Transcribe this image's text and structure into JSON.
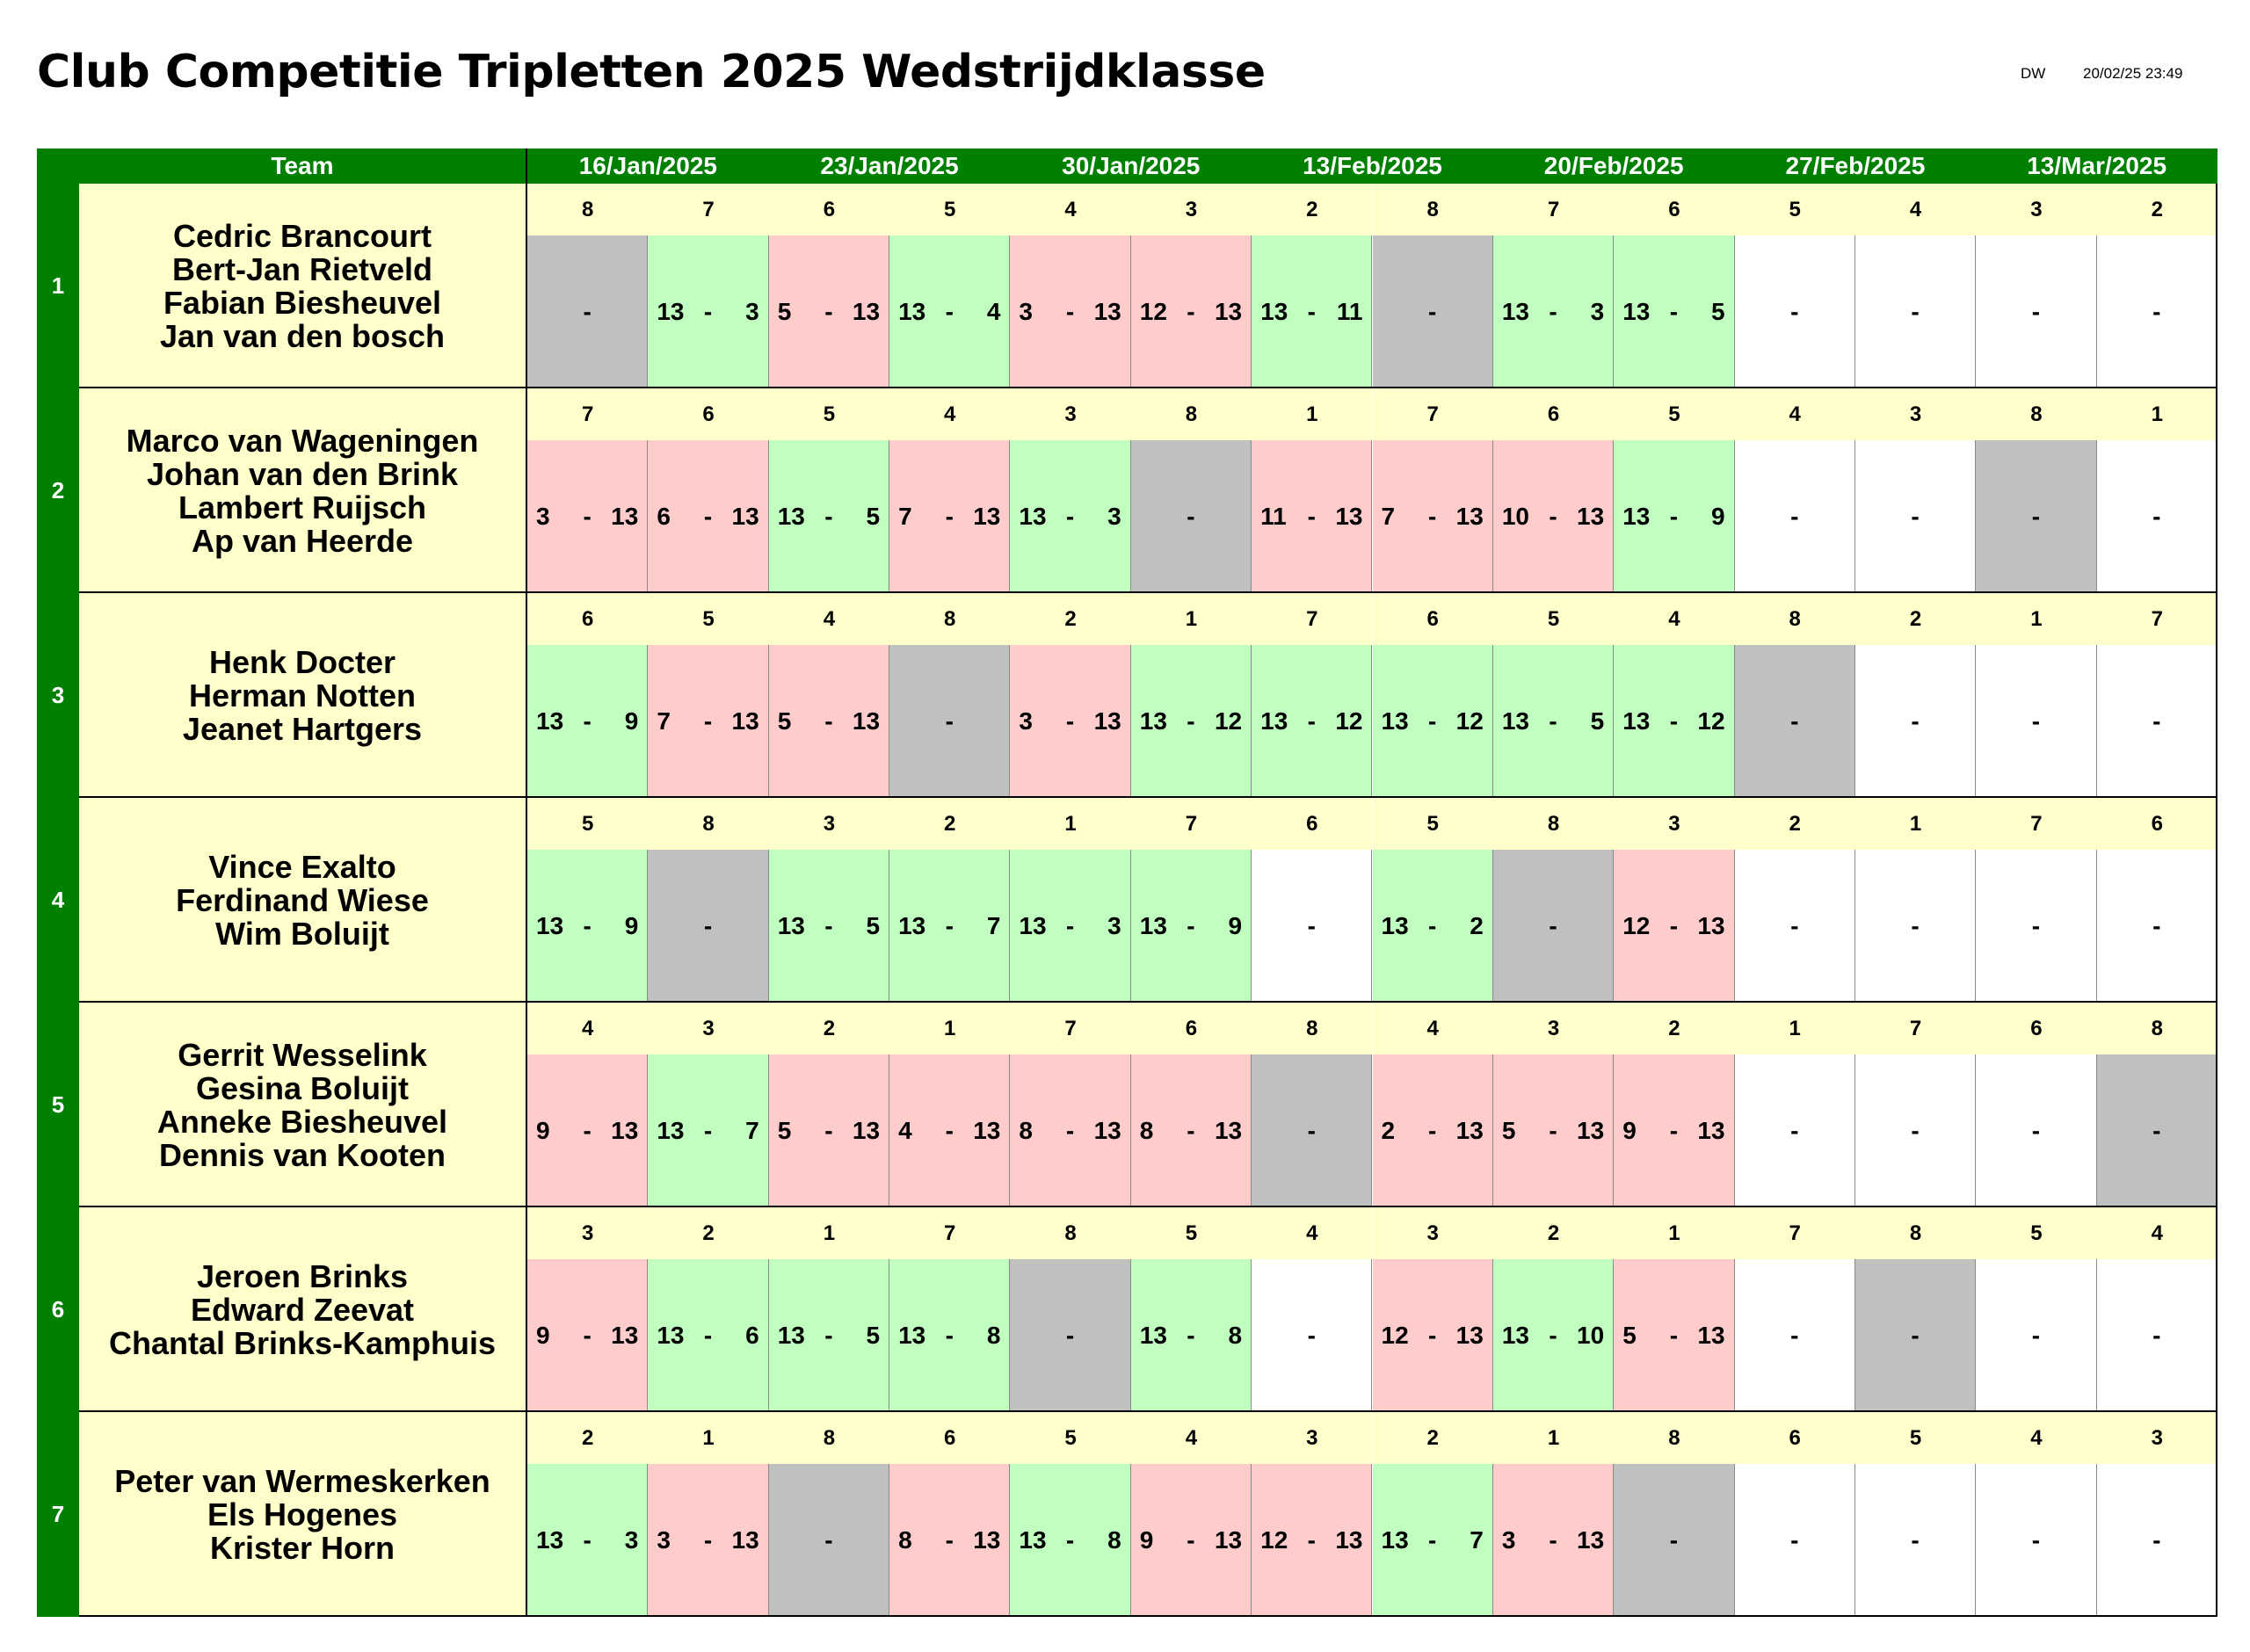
{
  "title": "Club Competitie Tripletten 2025 Wedstrijdklasse",
  "meta": {
    "author": "DW",
    "timestamp": "20/02/25 23:49"
  },
  "header": {
    "team_label": "Team",
    "dates": [
      "16/Jan/2025",
      "23/Jan/2025",
      "30/Jan/2025",
      "13/Feb/2025",
      "20/Feb/2025",
      "27/Feb/2025",
      "13/Mar/2025"
    ]
  },
  "colors": {
    "header_green": "#008000",
    "team_yellow": "#ffffcc",
    "win": "#c0ffc0",
    "loss": "#ffcccc",
    "bye": "#c0c0c0",
    "open": "#ffffff"
  },
  "teams": [
    {
      "number": "1",
      "players": [
        "Cedric Brancourt",
        "Bert-Jan Rietveld",
        "Fabian Biesheuvel",
        "Jan van den bosch"
      ],
      "opponents": [
        "8",
        "7",
        "6",
        "5",
        "4",
        "3",
        "2",
        "8",
        "7",
        "6",
        "5",
        "4",
        "3",
        "2"
      ],
      "results": [
        {
          "status": "bye",
          "for": "",
          "sep": "-",
          "against": ""
        },
        {
          "status": "win",
          "for": "13",
          "sep": "-",
          "against": "3"
        },
        {
          "status": "loss",
          "for": "5",
          "sep": "-",
          "against": "13"
        },
        {
          "status": "win",
          "for": "13",
          "sep": "-",
          "against": "4"
        },
        {
          "status": "loss",
          "for": "3",
          "sep": "-",
          "against": "13"
        },
        {
          "status": "loss",
          "for": "12",
          "sep": "-",
          "against": "13"
        },
        {
          "status": "win",
          "for": "13",
          "sep": "-",
          "against": "11"
        },
        {
          "status": "bye",
          "for": "",
          "sep": "-",
          "against": ""
        },
        {
          "status": "win",
          "for": "13",
          "sep": "-",
          "against": "3"
        },
        {
          "status": "win",
          "for": "13",
          "sep": "-",
          "against": "5"
        },
        {
          "status": "open",
          "for": "",
          "sep": "-",
          "against": ""
        },
        {
          "status": "open",
          "for": "",
          "sep": "-",
          "against": ""
        },
        {
          "status": "open",
          "for": "",
          "sep": "-",
          "against": ""
        },
        {
          "status": "open",
          "for": "",
          "sep": "-",
          "against": ""
        }
      ]
    },
    {
      "number": "2",
      "players": [
        "Marco van Wageningen",
        "Johan van den Brink",
        "Lambert Ruijsch",
        "Ap van Heerde"
      ],
      "opponents": [
        "7",
        "6",
        "5",
        "4",
        "3",
        "8",
        "1",
        "7",
        "6",
        "5",
        "4",
        "3",
        "8",
        "1"
      ],
      "results": [
        {
          "status": "loss",
          "for": "3",
          "sep": "-",
          "against": "13"
        },
        {
          "status": "loss",
          "for": "6",
          "sep": "-",
          "against": "13"
        },
        {
          "status": "win",
          "for": "13",
          "sep": "-",
          "against": "5"
        },
        {
          "status": "loss",
          "for": "7",
          "sep": "-",
          "against": "13"
        },
        {
          "status": "win",
          "for": "13",
          "sep": "-",
          "against": "3"
        },
        {
          "status": "bye",
          "for": "",
          "sep": "-",
          "against": ""
        },
        {
          "status": "loss",
          "for": "11",
          "sep": "-",
          "against": "13"
        },
        {
          "status": "loss",
          "for": "7",
          "sep": "-",
          "against": "13"
        },
        {
          "status": "loss",
          "for": "10",
          "sep": "-",
          "against": "13"
        },
        {
          "status": "win",
          "for": "13",
          "sep": "-",
          "against": "9"
        },
        {
          "status": "open",
          "for": "",
          "sep": "-",
          "against": ""
        },
        {
          "status": "open",
          "for": "",
          "sep": "-",
          "against": ""
        },
        {
          "status": "bye",
          "for": "",
          "sep": "-",
          "against": ""
        },
        {
          "status": "open",
          "for": "",
          "sep": "-",
          "against": ""
        }
      ]
    },
    {
      "number": "3",
      "players": [
        "Henk Docter",
        "Herman Notten",
        "Jeanet Hartgers"
      ],
      "opponents": [
        "6",
        "5",
        "4",
        "8",
        "2",
        "1",
        "7",
        "6",
        "5",
        "4",
        "8",
        "2",
        "1",
        "7"
      ],
      "results": [
        {
          "status": "win",
          "for": "13",
          "sep": "-",
          "against": "9"
        },
        {
          "status": "loss",
          "for": "7",
          "sep": "-",
          "against": "13"
        },
        {
          "status": "loss",
          "for": "5",
          "sep": "-",
          "against": "13"
        },
        {
          "status": "bye",
          "for": "",
          "sep": "-",
          "against": ""
        },
        {
          "status": "loss",
          "for": "3",
          "sep": "-",
          "against": "13"
        },
        {
          "status": "win",
          "for": "13",
          "sep": "-",
          "against": "12"
        },
        {
          "status": "win",
          "for": "13",
          "sep": "-",
          "against": "12"
        },
        {
          "status": "win",
          "for": "13",
          "sep": "-",
          "against": "12"
        },
        {
          "status": "win",
          "for": "13",
          "sep": "-",
          "against": "5"
        },
        {
          "status": "win",
          "for": "13",
          "sep": "-",
          "against": "12"
        },
        {
          "status": "bye",
          "for": "",
          "sep": "-",
          "against": ""
        },
        {
          "status": "open",
          "for": "",
          "sep": "-",
          "against": ""
        },
        {
          "status": "open",
          "for": "",
          "sep": "-",
          "against": ""
        },
        {
          "status": "open",
          "for": "",
          "sep": "-",
          "against": ""
        }
      ]
    },
    {
      "number": "4",
      "players": [
        "Vince Exalto",
        "Ferdinand Wiese",
        "Wim Boluijt"
      ],
      "opponents": [
        "5",
        "8",
        "3",
        "2",
        "1",
        "7",
        "6",
        "5",
        "8",
        "3",
        "2",
        "1",
        "7",
        "6"
      ],
      "results": [
        {
          "status": "win",
          "for": "13",
          "sep": "-",
          "against": "9"
        },
        {
          "status": "bye",
          "for": "",
          "sep": "-",
          "against": ""
        },
        {
          "status": "win",
          "for": "13",
          "sep": "-",
          "against": "5"
        },
        {
          "status": "win",
          "for": "13",
          "sep": "-",
          "against": "7"
        },
        {
          "status": "win",
          "for": "13",
          "sep": "-",
          "against": "3"
        },
        {
          "status": "win",
          "for": "13",
          "sep": "-",
          "against": "9"
        },
        {
          "status": "open",
          "for": "",
          "sep": "-",
          "against": ""
        },
        {
          "status": "win",
          "for": "13",
          "sep": "-",
          "against": "2"
        },
        {
          "status": "bye",
          "for": "",
          "sep": "-",
          "against": ""
        },
        {
          "status": "loss",
          "for": "12",
          "sep": "-",
          "against": "13"
        },
        {
          "status": "open",
          "for": "",
          "sep": "-",
          "against": ""
        },
        {
          "status": "open",
          "for": "",
          "sep": "-",
          "against": ""
        },
        {
          "status": "open",
          "for": "",
          "sep": "-",
          "against": ""
        },
        {
          "status": "open",
          "for": "",
          "sep": "-",
          "against": ""
        }
      ]
    },
    {
      "number": "5",
      "players": [
        "Gerrit Wesselink",
        "Gesina Boluijt",
        "Anneke Biesheuvel",
        "Dennis van Kooten"
      ],
      "opponents": [
        "4",
        "3",
        "2",
        "1",
        "7",
        "6",
        "8",
        "4",
        "3",
        "2",
        "1",
        "7",
        "6",
        "8"
      ],
      "results": [
        {
          "status": "loss",
          "for": "9",
          "sep": "-",
          "against": "13"
        },
        {
          "status": "win",
          "for": "13",
          "sep": "-",
          "against": "7"
        },
        {
          "status": "loss",
          "for": "5",
          "sep": "-",
          "against": "13"
        },
        {
          "status": "loss",
          "for": "4",
          "sep": "-",
          "against": "13"
        },
        {
          "status": "loss",
          "for": "8",
          "sep": "-",
          "against": "13"
        },
        {
          "status": "loss",
          "for": "8",
          "sep": "-",
          "against": "13"
        },
        {
          "status": "bye",
          "for": "",
          "sep": "-",
          "against": ""
        },
        {
          "status": "loss",
          "for": "2",
          "sep": "-",
          "against": "13"
        },
        {
          "status": "loss",
          "for": "5",
          "sep": "-",
          "against": "13"
        },
        {
          "status": "loss",
          "for": "9",
          "sep": "-",
          "against": "13"
        },
        {
          "status": "open",
          "for": "",
          "sep": "-",
          "against": ""
        },
        {
          "status": "open",
          "for": "",
          "sep": "-",
          "against": ""
        },
        {
          "status": "open",
          "for": "",
          "sep": "-",
          "against": ""
        },
        {
          "status": "bye",
          "for": "",
          "sep": "-",
          "against": ""
        }
      ]
    },
    {
      "number": "6",
      "players": [
        "Jeroen Brinks",
        "Edward Zeevat",
        "Chantal Brinks-Kamphuis"
      ],
      "opponents": [
        "3",
        "2",
        "1",
        "7",
        "8",
        "5",
        "4",
        "3",
        "2",
        "1",
        "7",
        "8",
        "5",
        "4"
      ],
      "results": [
        {
          "status": "loss",
          "for": "9",
          "sep": "-",
          "against": "13"
        },
        {
          "status": "win",
          "for": "13",
          "sep": "-",
          "against": "6"
        },
        {
          "status": "win",
          "for": "13",
          "sep": "-",
          "against": "5"
        },
        {
          "status": "win",
          "for": "13",
          "sep": "-",
          "against": "8"
        },
        {
          "status": "bye",
          "for": "",
          "sep": "-",
          "against": ""
        },
        {
          "status": "win",
          "for": "13",
          "sep": "-",
          "against": "8"
        },
        {
          "status": "open",
          "for": "",
          "sep": "-",
          "against": ""
        },
        {
          "status": "loss",
          "for": "12",
          "sep": "-",
          "against": "13"
        },
        {
          "status": "win",
          "for": "13",
          "sep": "-",
          "against": "10"
        },
        {
          "status": "loss",
          "for": "5",
          "sep": "-",
          "against": "13"
        },
        {
          "status": "open",
          "for": "",
          "sep": "-",
          "against": ""
        },
        {
          "status": "bye",
          "for": "",
          "sep": "-",
          "against": ""
        },
        {
          "status": "open",
          "for": "",
          "sep": "-",
          "against": ""
        },
        {
          "status": "open",
          "for": "",
          "sep": "-",
          "against": ""
        }
      ]
    },
    {
      "number": "7",
      "players": [
        "Peter van Wermeskerken",
        "Els Hogenes",
        "Krister Horn"
      ],
      "opponents": [
        "2",
        "1",
        "8",
        "6",
        "5",
        "4",
        "3",
        "2",
        "1",
        "8",
        "6",
        "5",
        "4",
        "3"
      ],
      "results": [
        {
          "status": "win",
          "for": "13",
          "sep": "-",
          "against": "3"
        },
        {
          "status": "loss",
          "for": "3",
          "sep": "-",
          "against": "13"
        },
        {
          "status": "bye",
          "for": "",
          "sep": "-",
          "against": ""
        },
        {
          "status": "loss",
          "for": "8",
          "sep": "-",
          "against": "13"
        },
        {
          "status": "win",
          "for": "13",
          "sep": "-",
          "against": "8"
        },
        {
          "status": "loss",
          "for": "9",
          "sep": "-",
          "against": "13"
        },
        {
          "status": "loss",
          "for": "12",
          "sep": "-",
          "against": "13"
        },
        {
          "status": "win",
          "for": "13",
          "sep": "-",
          "against": "7"
        },
        {
          "status": "loss",
          "for": "3",
          "sep": "-",
          "against": "13"
        },
        {
          "status": "bye",
          "for": "",
          "sep": "-",
          "against": ""
        },
        {
          "status": "open",
          "for": "",
          "sep": "-",
          "against": ""
        },
        {
          "status": "open",
          "for": "",
          "sep": "-",
          "against": ""
        },
        {
          "status": "open",
          "for": "",
          "sep": "-",
          "against": ""
        },
        {
          "status": "open",
          "for": "",
          "sep": "-",
          "against": ""
        }
      ]
    }
  ]
}
